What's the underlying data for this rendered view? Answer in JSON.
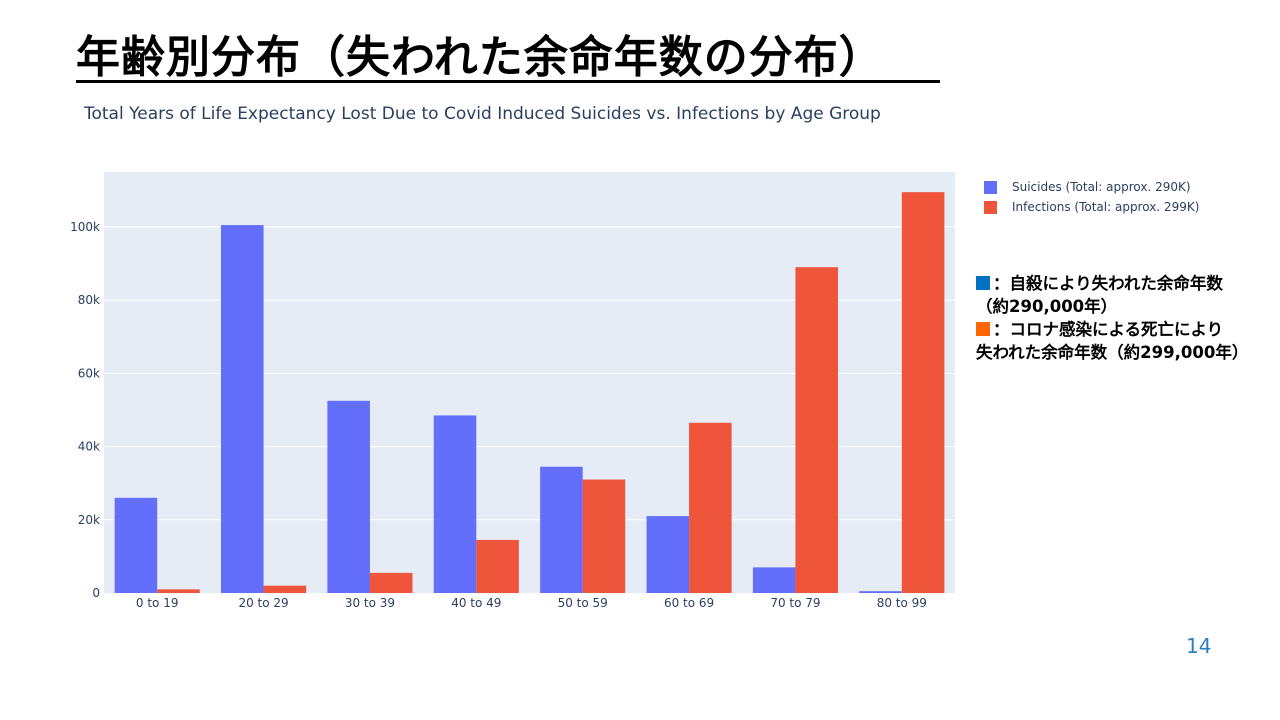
{
  "slide": {
    "title": "年齢別分布（失われた余命年数の分布）",
    "page_number": "14"
  },
  "notes": {
    "line1": "：自殺により失われた余命年数",
    "line2": "（約290,000年）",
    "line3": "：コロナ感染による死亡により",
    "line4": "失われた余命年数（約299,000年）",
    "marker1_color": "#0070C0",
    "marker2_color": "#FF6600"
  },
  "chart_data": {
    "type": "bar",
    "title": "Total Years of Life Expectancy Lost Due to Covid Induced Suicides vs. Infections by Age Group",
    "categories": [
      "0 to 19",
      "20 to 29",
      "30 to 39",
      "40 to 49",
      "50 to 59",
      "60 to 69",
      "70 to 79",
      "80 to 99"
    ],
    "series": [
      {
        "name": "Suicides (Total: approx. 290K)",
        "color": "#636efa",
        "values": [
          26000,
          100500,
          52500,
          48500,
          34500,
          21000,
          7000,
          500
        ]
      },
      {
        "name": "Infections (Total: approx. 299K)",
        "color": "#ef553b",
        "values": [
          1000,
          2000,
          5500,
          14500,
          31000,
          46500,
          89000,
          109500
        ]
      }
    ],
    "ylim": [
      0,
      115000
    ],
    "yticks": [
      0,
      20000,
      40000,
      60000,
      80000,
      100000
    ],
    "ytick_labels": [
      "0",
      "20k",
      "40k",
      "60k",
      "80k",
      "100k"
    ],
    "grid": true,
    "legend_position": "right"
  }
}
